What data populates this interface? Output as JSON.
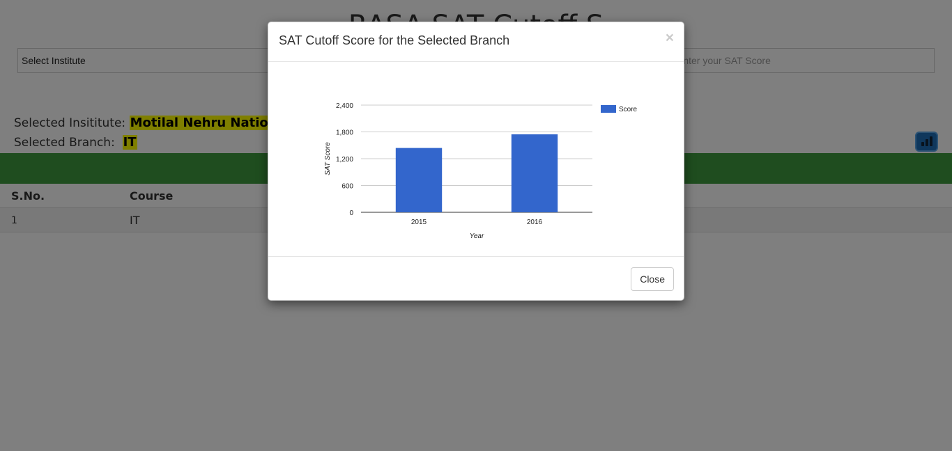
{
  "page": {
    "title": "RASA SAT Cutoff S",
    "select_institute_label": "Select Institute",
    "score_placeholder": "Enter your SAT Score",
    "selected_institute_label": "Selected Insititute:",
    "selected_institute_value": "Motilal Nehru Nationa",
    "selected_branch_label": "Selected Branch:",
    "selected_branch_value": "IT",
    "table": {
      "headers": [
        "S.No.",
        "Course"
      ],
      "rows": [
        [
          "1",
          "IT"
        ]
      ]
    },
    "chart_button_icon": "bar-chart-icon"
  },
  "modal": {
    "title": "SAT Cutoff Score for the Selected Branch",
    "close_x": "×",
    "close_button": "Close"
  },
  "chart_data": {
    "type": "bar",
    "categories": [
      "2015",
      "2016"
    ],
    "series": [
      {
        "name": "Score",
        "values": [
          1440,
          1745
        ],
        "color": "#3366cc"
      }
    ],
    "xlabel": "Year",
    "ylabel": "SAT Score",
    "ylim": [
      0,
      2400
    ],
    "yticks": [
      0,
      600,
      1200,
      1800,
      2400
    ],
    "ytick_labels": [
      "0",
      "600",
      "1,200",
      "1,800",
      "2,400"
    ],
    "grid": true,
    "legend": "right"
  }
}
